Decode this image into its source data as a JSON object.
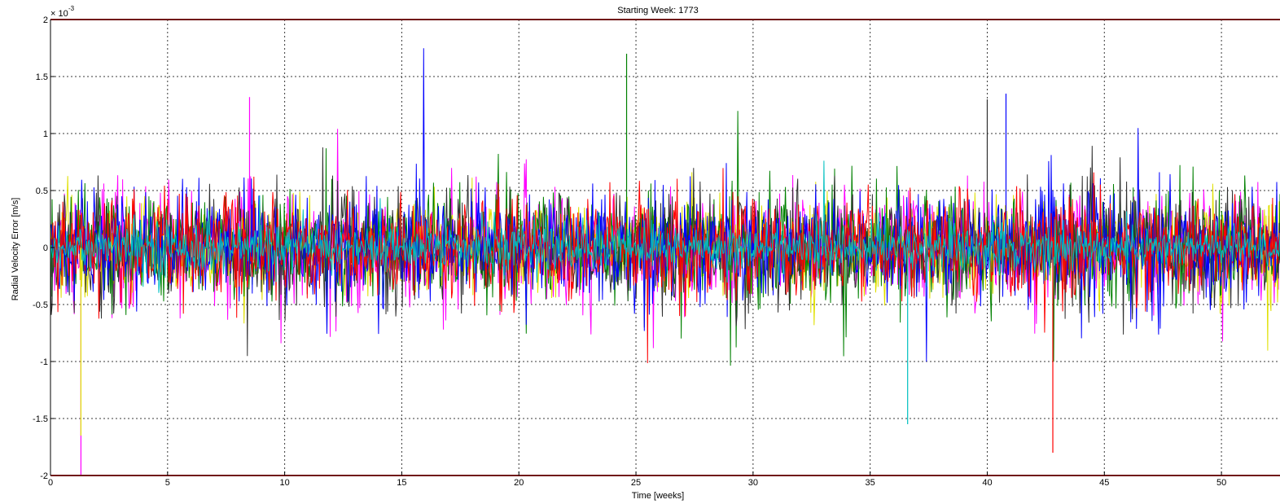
{
  "chart_data": {
    "type": "line",
    "title": "Starting Week: 1773",
    "xlabel": "Time [weeks]",
    "ylabel": "Radial Velocity Error [m/s]",
    "y_multiplier_label": "× 10",
    "y_multiplier_exponent": "-3",
    "xlim": [
      0,
      52.5
    ],
    "ylim": [
      -2,
      2
    ],
    "x_ticks": [
      0,
      5,
      10,
      15,
      20,
      25,
      30,
      35,
      40,
      45,
      50
    ],
    "x_tick_labels": [
      "0",
      "5",
      "10",
      "15",
      "20",
      "25",
      "30",
      "35",
      "40",
      "45",
      "50"
    ],
    "y_ticks": [
      -2,
      -1.5,
      -1,
      -0.5,
      0,
      0.5,
      1,
      1.5,
      2
    ],
    "y_tick_labels": [
      "-2",
      "-1.5",
      "-1",
      "-0.5",
      "0",
      "0.5",
      "1",
      "1.5",
      "2"
    ],
    "grid": true,
    "threshold_lines": [
      {
        "y": 2,
        "color": "#e03030"
      },
      {
        "y": -2,
        "color": "#e03030"
      }
    ],
    "series_colors": [
      "#ff00ff",
      "#e0e000",
      "#008000",
      "#303030",
      "#0000ff",
      "#ff0000",
      "#00c0c0"
    ],
    "series_envelope": {
      "colors_order": [
        "#ff00ff",
        "#e0e000",
        "#008000",
        "#303030",
        "#0000ff",
        "#ff0000",
        "#00c0c0"
      ],
      "typical_amplitude": [
        0.55,
        0.45,
        0.55,
        0.55,
        0.55,
        0.5,
        0.25
      ],
      "points_per_series": 1500
    },
    "peaks": [
      {
        "x": 1.3,
        "y": -2.0
      },
      {
        "x": 1.3,
        "y": -1.65
      },
      {
        "x": 24.6,
        "y": 1.7
      },
      {
        "x": 40.0,
        "y": 1.3
      },
      {
        "x": 40.8,
        "y": 1.35
      },
      {
        "x": 42.8,
        "y": -1.8
      },
      {
        "x": 36.6,
        "y": -1.55
      },
      {
        "x": 8.5,
        "y": 1.32
      }
    ]
  }
}
